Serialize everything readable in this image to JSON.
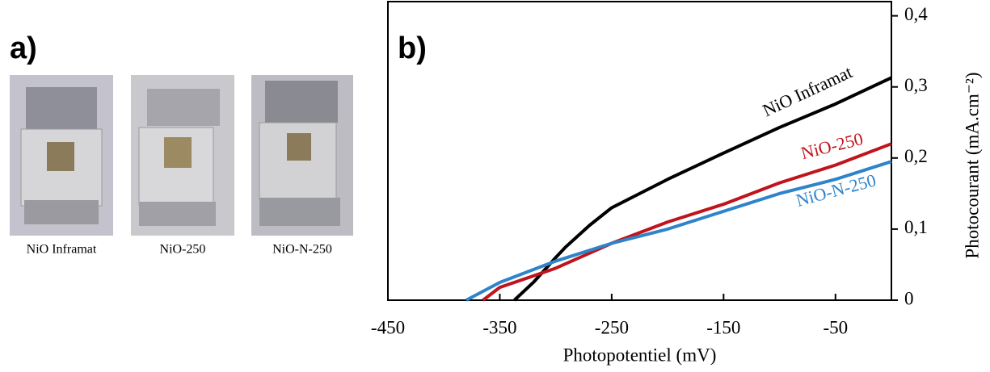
{
  "panel_a": {
    "label": "a)",
    "captions": [
      "NiO Inframat",
      "NiO-250",
      "NiO-N-250"
    ]
  },
  "chart_data": {
    "type": "line",
    "panel_label": "b)",
    "xlabel": "Photopotentiel (mV)",
    "ylabel": "Photocourant (mA.cm⁻²)",
    "xlim": [
      -450,
      0
    ],
    "xticks": [
      -450,
      -350,
      -250,
      -150,
      -50
    ],
    "ylim": [
      0,
      0.42
    ],
    "yticks": [
      {
        "value": 0,
        "label": "0"
      },
      {
        "value": 0.1,
        "label": "0,1"
      },
      {
        "value": 0.2,
        "label": "0,2"
      },
      {
        "value": 0.3,
        "label": "0,3"
      },
      {
        "value": 0.4,
        "label": "0,4"
      }
    ],
    "series": [
      {
        "name": "NiO Inframat",
        "color": "#000000",
        "x": [
          -337,
          -320,
          -300,
          -291,
          -270,
          -250,
          -200,
          -150,
          -100,
          -50,
          0
        ],
        "values": [
          0,
          0.025,
          0.06,
          0.075,
          0.105,
          0.13,
          0.17,
          0.207,
          0.243,
          0.276,
          0.313
        ]
      },
      {
        "name": "NiO-250",
        "color": "#c0141c",
        "x": [
          -365,
          -350,
          -300,
          -250,
          -200,
          -150,
          -100,
          -50,
          0
        ],
        "values": [
          0,
          0.018,
          0.045,
          0.08,
          0.11,
          0.135,
          0.165,
          0.19,
          0.22
        ]
      },
      {
        "name": "NiO-N-250",
        "color": "#2e83c9",
        "x": [
          -380,
          -350,
          -300,
          -250,
          -200,
          -150,
          -100,
          -50,
          0
        ],
        "values": [
          0,
          0.025,
          0.055,
          0.08,
          0.1,
          0.125,
          0.15,
          0.17,
          0.195
        ]
      }
    ]
  }
}
